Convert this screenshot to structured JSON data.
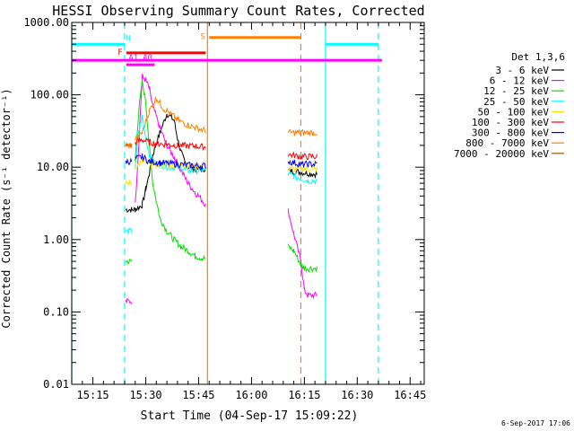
{
  "chart_data": {
    "type": "line",
    "title": "HESSI Observing Summary Count Rates, Corrected",
    "xlabel": "Start Time (04-Sep-17 15:09:22)",
    "ylabel": "Corrected Count Rate (s⁻¹ detector⁻¹)",
    "yscale": "log",
    "ylim": [
      0.01,
      1000
    ],
    "xlim_minutes_after_1509": [
      0,
      100
    ],
    "x_ticks": [
      "15:15",
      "15:30",
      "15:45",
      "16:00",
      "16:15",
      "16:30",
      "16:45"
    ],
    "y_ticks": [
      "0.01",
      "0.10",
      "1.00",
      "10.00",
      "100.00",
      "1000.00"
    ],
    "legend_title": "Det 1,3,6",
    "legend_position": "right",
    "timestamp": "6-Sep-2017 17:06",
    "series": [
      {
        "name": "3 - 6 keV",
        "color": "#000000",
        "x": [
          15.2,
          15.3,
          17,
          18,
          20,
          21,
          22,
          23,
          25,
          27,
          29,
          30,
          31,
          32,
          33,
          35,
          37,
          38,
          38.1,
          61.3,
          61.4,
          65,
          69.6
        ],
        "y": [
          null,
          2.6,
          2.6,
          2.6,
          3,
          5,
          8,
          15,
          30,
          55,
          45,
          25,
          16,
          12,
          10,
          9.5,
          9.5,
          9.5,
          null,
          null,
          9,
          8.5,
          8
        ]
      },
      {
        "name": "6 - 12 keV",
        "color": "#ff00ff",
        "x": [
          15.2,
          15.3,
          17,
          17.1,
          18,
          19,
          20,
          21,
          22,
          23,
          25,
          27,
          29,
          31,
          33,
          35,
          37,
          38,
          38.1,
          61.3,
          61.4,
          63,
          65,
          66,
          67,
          69.6
        ],
        "y": [
          null,
          0.14,
          0.14,
          null,
          3,
          20,
          180,
          160,
          120,
          70,
          35,
          20,
          14,
          9,
          6,
          4.5,
          3.5,
          3,
          null,
          null,
          2.5,
          1.2,
          0.5,
          0.2,
          0.17,
          0.17
        ]
      },
      {
        "name": "12 - 25 keV",
        "color": "#00e000",
        "x": [
          15.2,
          15.3,
          17,
          17.1,
          18,
          19,
          20,
          21,
          22,
          23,
          25,
          27,
          29,
          31,
          33,
          35,
          37,
          38,
          38.1,
          61.3,
          61.4,
          63,
          65,
          66,
          69.6
        ],
        "y": [
          null,
          0.5,
          0.5,
          null,
          12,
          60,
          150,
          80,
          20,
          6,
          2,
          1.3,
          1,
          0.8,
          0.7,
          0.6,
          0.55,
          0.55,
          null,
          null,
          0.8,
          0.7,
          0.45,
          0.4,
          0.4
        ]
      },
      {
        "name": "25 - 50 keV",
        "color": "#00ffff",
        "x": [
          15.2,
          15.3,
          17,
          17.1,
          18,
          19,
          20,
          21,
          22,
          23,
          25,
          27,
          29,
          31,
          33,
          35,
          37,
          38,
          38.1,
          61.3,
          61.4,
          63,
          65,
          67,
          69.6
        ],
        "y": [
          null,
          1.3,
          1.3,
          null,
          10,
          30,
          50,
          25,
          15,
          12,
          11,
          10,
          10,
          9.5,
          9,
          9,
          9,
          9,
          null,
          null,
          8,
          7.5,
          7,
          6.5,
          6.5
        ]
      },
      {
        "name": "50 - 100 keV",
        "color": "#ffe000",
        "x": [
          15.2,
          15.3,
          17,
          17.1,
          18,
          20,
          22,
          25,
          30,
          35,
          38,
          38.1,
          61.3,
          61.4,
          65,
          69.6
        ],
        "y": [
          null,
          6,
          6,
          null,
          10,
          12,
          11,
          11,
          10.5,
          10.5,
          10.5,
          null,
          null,
          9.5,
          9.5,
          9.5
        ]
      },
      {
        "name": "100 - 300 keV",
        "color": "#ff0000",
        "x": [
          15.2,
          15.3,
          17,
          17.1,
          18,
          20,
          22,
          25,
          30,
          35,
          38,
          38.1,
          61.3,
          61.4,
          65,
          69.6
        ],
        "y": [
          null,
          20,
          20,
          null,
          22,
          24,
          22,
          21,
          20,
          19.5,
          19,
          null,
          null,
          15,
          14,
          14
        ]
      },
      {
        "name": "300 - 800 keV",
        "color": "#0000ff",
        "x": [
          15.2,
          15.3,
          17,
          17.1,
          18,
          20,
          22,
          25,
          30,
          35,
          38,
          38.1,
          61.3,
          61.4,
          65,
          69.6
        ],
        "y": [
          null,
          12,
          12,
          null,
          13,
          14,
          12,
          11.5,
          11,
          10.5,
          10.5,
          null,
          null,
          12,
          11,
          11
        ]
      },
      {
        "name": "800 - 7000 keV",
        "color": "#ff8000",
        "x": [
          15.2,
          15.3,
          17,
          17.1,
          18,
          20,
          22,
          24,
          26,
          28,
          30,
          32,
          35,
          38,
          38.1,
          61.3,
          61.4,
          65,
          69.6
        ],
        "y": [
          null,
          20,
          20,
          null,
          24,
          30,
          60,
          90,
          65,
          55,
          45,
          40,
          35,
          32,
          null,
          null,
          30,
          30,
          30
        ]
      },
      {
        "name": "7000 - 20000 keV",
        "color": "#9a5a00",
        "x": [],
        "y": []
      }
    ],
    "annotations": [
      {
        "label": "N",
        "color": "#00ffff",
        "kind": "bar",
        "x": [
          0,
          15
        ],
        "y": 500
      },
      {
        "label": "",
        "color": "#00ffff",
        "kind": "bar",
        "x": [
          72,
          87
        ],
        "y": 500
      },
      {
        "label": "F",
        "color": "#ff0000",
        "kind": "bar",
        "x": [
          15.5,
          38
        ],
        "y": 380
      },
      {
        "label": "S",
        "color": "#ff8000",
        "kind": "bar",
        "x": [
          39,
          65
        ],
        "y": 620
      },
      {
        "label": "",
        "color": "#ff00ff",
        "kind": "bar",
        "x": [
          0,
          88
        ],
        "y": 300
      },
      {
        "label": "A1",
        "color": "#ff00ff",
        "kind": "marker",
        "x": 17.5,
        "y": 260
      },
      {
        "label": "A0",
        "color": "#ff00ff",
        "kind": "marker",
        "x": 21.5,
        "y": 260
      }
    ],
    "vlines": [
      {
        "x": 0,
        "color": "#00ffff",
        "style": "solid"
      },
      {
        "x": 15,
        "color": "#00ffff",
        "style": "dashed"
      },
      {
        "x": 38.5,
        "color": "#ff8000",
        "style": "solid"
      },
      {
        "x": 65,
        "color": "#ff8000",
        "style": "dashed"
      },
      {
        "x": 72,
        "color": "#00ffff",
        "style": "solid"
      },
      {
        "x": 87,
        "color": "#00ffff",
        "style": "dashed"
      }
    ]
  }
}
